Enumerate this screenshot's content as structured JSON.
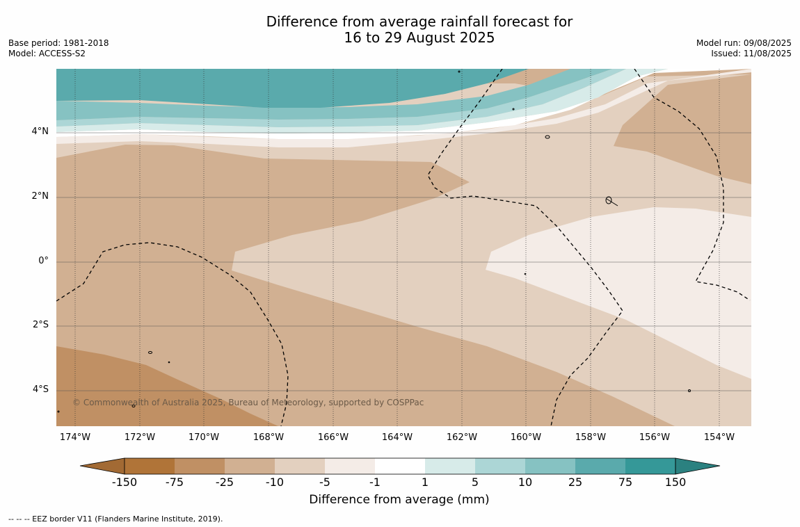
{
  "title_line1": "Difference from average rainfall forecast for",
  "title_line2": "16 to 29 August 2025",
  "base_period": "Base period: 1981-2018",
  "model": "Model: ACCESS-S2",
  "model_run": "Model run: 09/08/2025",
  "issued": "Issued: 11/08/2025",
  "copyright": "© Commonwealth of Australia 2025, Bureau of Meteorology, supported by COSPPac",
  "footnote": "--  --  -- EEZ border V11 (Flanders Marine Institute, 2019).",
  "lat_ticks": [
    "4°N",
    "2°N",
    "0°",
    "2°S",
    "4°S"
  ],
  "lon_ticks": [
    "174°W",
    "172°W",
    "170°W",
    "168°W",
    "166°W",
    "164°W",
    "162°W",
    "160°W",
    "158°W",
    "156°W",
    "154°W"
  ],
  "colorbar": {
    "title": "Difference from average (mm)",
    "labels": [
      "-150",
      "-75",
      "-25",
      "-10",
      "-5",
      "-1",
      "1",
      "5",
      "10",
      "25",
      "75",
      "150"
    ],
    "colors": [
      "#a26a34",
      "#b07438",
      "#c09064",
      "#d1b092",
      "#e3d0bf",
      "#f4ece7",
      "#ffffff",
      "#d7ebe9",
      "#acd6d6",
      "#86c2c2",
      "#5aaaac",
      "#359898",
      "#2b8180"
    ]
  },
  "map_colors": {
    "lt_m25": "#c09064",
    "m25_m10": "#d1b092",
    "m10_m5": "#e3d0bf",
    "m5_m1": "#f4ece7",
    "m1_1": "#ffffff",
    "p1_5": "#d7ebe9",
    "p5_10": "#acd6d6",
    "p10_25": "#86c2c2",
    "p25_75": "#5aaaac"
  }
}
